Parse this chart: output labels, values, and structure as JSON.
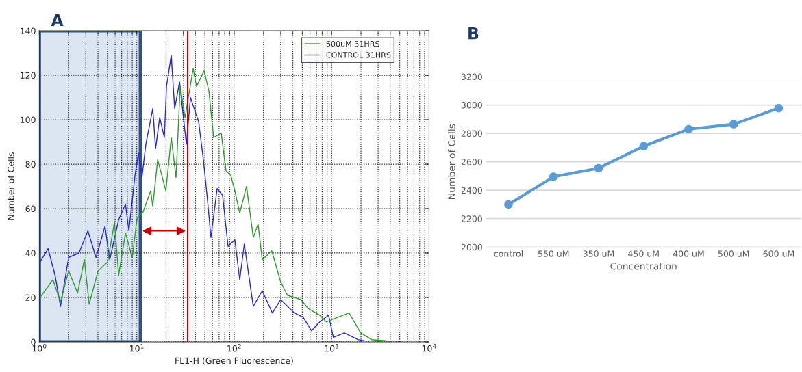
{
  "chart_data": [
    {
      "type": "line",
      "xlabel": "FL1-H (Green Fluorescence)",
      "ylabel": "Number of Cells",
      "annotations": [
        "A"
      ],
      "log": "x",
      "xlim": [
        1,
        10000
      ],
      "xticks": [
        {
          "value": 1,
          "label": "10$^{0}$"
        },
        {
          "value": 10,
          "label": "10$^{1}$"
        },
        {
          "value": 100,
          "label": "10$^{2}$"
        },
        {
          "value": 1000,
          "label": "10$^{3}$"
        },
        {
          "value": 10000,
          "label": "10$^{4}$"
        }
      ],
      "ylim": [
        0,
        140
      ],
      "yticks": [
        0,
        20,
        40,
        60,
        80,
        100,
        120,
        140
      ],
      "grid": true,
      "legend": "top right",
      "line_style": "solid",
      "marker": "none",
      "bands": [
        {
          "axis": "x",
          "from": 1,
          "to": 10.9,
          "color": "#dce6f2"
        }
      ],
      "ref_lines": [
        {
          "axis": "x",
          "value": 33.3,
          "color": "#c00000"
        }
      ],
      "series": [
        {
          "name": "600uM 31HRS",
          "color": "#2424e0",
          "x": [
            1.02,
            1.23,
            1.45,
            1.65,
            2.0,
            2.55,
            3.15,
            3.82,
            4.72,
            5.28,
            6.52,
            7.66,
            8.3,
            9.6,
            10.4,
            11.3,
            12.4,
            14.6,
            15.6,
            17.2,
            19.2,
            20.2,
            22.6,
            24.5,
            27.5,
            32.3,
            35.6,
            43.2,
            48.3,
            53.2,
            57.7,
            66.8,
            76,
            86.5,
            101.6,
            114,
            127,
            157,
            194,
            247,
            300,
            415,
            512,
            621,
            754,
            929,
            1042,
            1349,
            1862,
            2188
          ],
          "values": [
            36,
            42,
            30,
            16,
            38,
            40,
            50,
            38,
            52,
            37,
            55,
            62,
            50,
            75,
            85,
            74,
            89,
            105,
            87,
            101,
            92,
            115,
            129,
            105,
            117,
            89,
            110,
            99,
            82,
            64,
            47,
            69,
            66,
            43,
            46,
            28,
            44,
            16,
            23,
            13,
            19,
            13,
            11,
            5,
            9,
            12,
            2,
            4,
            1,
            0.5
          ]
        },
        {
          "name": "CONTROL 31HRS",
          "color": "#2e9a2e",
          "x": [
            1.02,
            1.38,
            1.65,
            2.0,
            2.47,
            2.9,
            3.25,
            4.01,
            5.03,
            5.91,
            6.52,
            7.66,
            9.0,
            10.1,
            11.5,
            13.9,
            14.6,
            16.4,
            19.9,
            22.6,
            25.3,
            27.9,
            31.3,
            37.9,
            41.1,
            49.1,
            55,
            61.5,
            73.6,
            82.4,
            92.2,
            101.6,
            114,
            134,
            157,
            176,
            194,
            243,
            300,
            352,
            487,
            573,
            754,
            885,
            1148,
            1510,
            1986,
            2575,
            3556
          ],
          "values": [
            20,
            28,
            18,
            32,
            22,
            37,
            17,
            32,
            36,
            54,
            30,
            49,
            38,
            56,
            58,
            68,
            61,
            82,
            68,
            92,
            74,
            115,
            101,
            123,
            115,
            122,
            113,
            92,
            94,
            77,
            75,
            68,
            58,
            70,
            47,
            53,
            37,
            41,
            27,
            21,
            19,
            15,
            12,
            9,
            11,
            13,
            4,
            1,
            0.5
          ]
        }
      ]
    },
    {
      "type": "line",
      "xlabel": "Concentration",
      "ylabel": "Number of Cells",
      "annotations": [
        "B"
      ],
      "categories": [
        "control",
        "550 uM",
        "350 uM",
        "450 uM",
        "400 uM",
        "500 uM",
        "600 uM"
      ],
      "ylim": [
        2000,
        3200
      ],
      "yticks": [
        2000,
        2200,
        2400,
        2600,
        2800,
        3000,
        3200
      ],
      "grid": "y",
      "marker": "circle",
      "line_style": "solid",
      "series": [
        {
          "color": "#5b9bd5",
          "values": [
            2300,
            2495,
            2555,
            2710,
            2830,
            2865,
            2978
          ]
        }
      ]
    }
  ]
}
